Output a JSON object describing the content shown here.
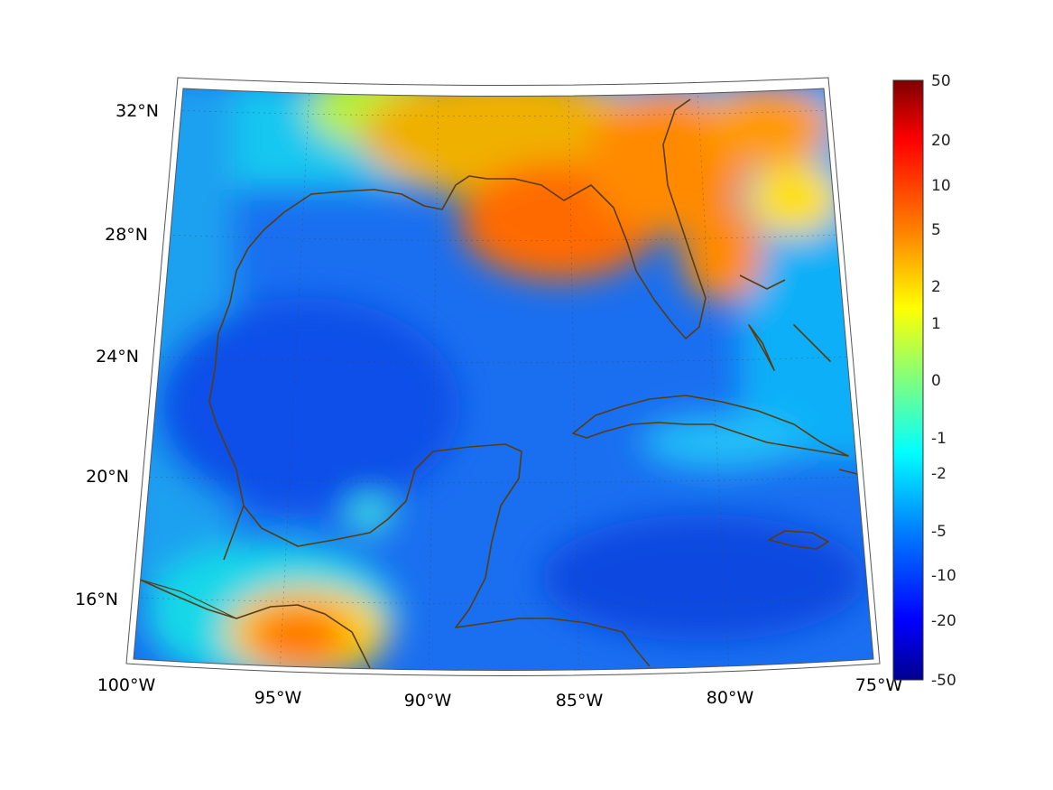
{
  "map": {
    "lat_labels": [
      "32°N",
      "28°N",
      "24°N",
      "20°N",
      "16°N"
    ],
    "lon_labels": [
      "100°W",
      "95°W",
      "90°W",
      "85°W",
      "80°W",
      "75°W"
    ]
  },
  "colorbar": {
    "labels": [
      "50",
      "20",
      "10",
      "5",
      "2",
      "1",
      "0",
      "-1",
      "-2",
      "-5",
      "-10",
      "-20",
      "-50"
    ],
    "colors": [
      "#7f0000",
      "#ff0000",
      "#ff7a00",
      "#ffff00",
      "#7fff7f",
      "#00ffff",
      "#0080ff",
      "#0000ff",
      "#00008f"
    ]
  }
}
